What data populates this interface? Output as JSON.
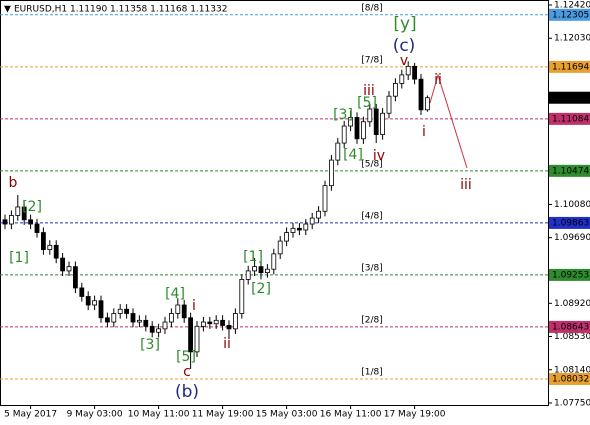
{
  "chart_data": {
    "type": "candlestick",
    "header": "EURUSD,H1  1.11190 1.11358 1.11168 1.11332",
    "categories": [
      null,
      null,
      null,
      null,
      "5 May 2017",
      null,
      null,
      null,
      null,
      null,
      null,
      null,
      null,
      null,
      "9 May 03:00",
      null,
      null,
      null,
      null,
      null,
      null,
      null,
      null,
      null,
      "10 May 11:00",
      null,
      null,
      null,
      null,
      null,
      null,
      null,
      null,
      null,
      "11 May 19:00",
      null,
      null,
      null,
      null,
      null,
      null,
      null,
      null,
      null,
      "15 May 03:00",
      null,
      null,
      null,
      null,
      null,
      null,
      null,
      null,
      null,
      "16 May 11:00",
      null,
      null,
      null,
      null,
      null,
      null,
      null,
      null,
      null,
      "17 May 19:00",
      null,
      null
    ],
    "open": [
      1.099,
      1.0985,
      1.0995,
      1.1005,
      1.099,
      1.0985,
      1.0975,
      1.0955,
      1.096,
      1.0945,
      1.093,
      1.0935,
      1.091,
      1.09,
      1.089,
      1.0895,
      1.0875,
      1.087,
      1.088,
      1.0885,
      1.088,
      1.087,
      1.0872,
      1.0865,
      1.0858,
      1.0862,
      1.087,
      1.088,
      1.089,
      1.0875,
      1.0835,
      1.0865,
      1.087,
      1.0868,
      1.0872,
      1.0866,
      1.0862,
      1.088,
      1.092,
      1.093,
      1.0935,
      1.0928,
      1.0932,
      1.095,
      1.0965,
      1.0975,
      1.098,
      1.0978,
      1.0985,
      1.0992,
      1.1,
      1.103,
      1.106,
      1.108,
      1.11,
      1.111,
      1.1085,
      1.1105,
      1.112,
      1.109,
      1.1115,
      1.1135,
      1.115,
      1.116,
      1.117,
      1.1155,
      1.1119
    ],
    "high": [
      1.0996,
      1.1001,
      1.1019,
      1.1011,
      1.0996,
      1.0991,
      1.0981,
      1.0966,
      1.0966,
      1.0951,
      1.0941,
      1.0941,
      1.0916,
      1.0906,
      1.0901,
      1.0901,
      1.0881,
      1.0886,
      1.0891,
      1.0891,
      1.0886,
      1.0878,
      1.0878,
      1.0871,
      1.0868,
      1.0876,
      1.0886,
      1.0898,
      1.0896,
      1.0881,
      1.0871,
      1.0876,
      1.0876,
      1.0878,
      1.0878,
      1.0872,
      1.0886,
      1.0926,
      1.0936,
      1.0945,
      1.0941,
      1.0938,
      1.0956,
      1.0971,
      1.0981,
      1.0986,
      1.0986,
      1.0991,
      1.0998,
      1.1006,
      1.1036,
      1.1066,
      1.1086,
      1.1106,
      1.1118,
      1.1116,
      1.1111,
      1.1126,
      1.1126,
      1.1121,
      1.1141,
      1.1156,
      1.1166,
      1.1176,
      1.1174,
      1.1161,
      1.11358
    ],
    "low": [
      1.0979,
      1.0979,
      1.0989,
      1.0984,
      1.0979,
      1.0969,
      1.0949,
      1.0949,
      1.0939,
      1.0924,
      1.0924,
      1.0904,
      1.0894,
      1.0884,
      1.0884,
      1.0869,
      1.0864,
      1.0864,
      1.0874,
      1.0874,
      1.0864,
      1.0864,
      1.0859,
      1.0852,
      1.0852,
      1.0856,
      1.0864,
      1.0874,
      1.0869,
      1.0815,
      1.0829,
      1.0859,
      1.0862,
      1.0862,
      1.086,
      1.085,
      1.0856,
      1.0874,
      1.0914,
      1.0924,
      1.092,
      1.0922,
      1.0926,
      1.0944,
      1.0959,
      1.0969,
      1.0972,
      1.0972,
      1.0979,
      1.0986,
      1.0994,
      1.1024,
      1.1054,
      1.1074,
      1.1094,
      1.1079,
      1.1079,
      1.1099,
      1.108,
      1.1084,
      1.1109,
      1.1129,
      1.1144,
      1.1154,
      1.1149,
      1.1113,
      1.11168
    ],
    "close": [
      1.0985,
      1.0995,
      1.1005,
      1.099,
      1.0985,
      1.0975,
      1.0955,
      1.096,
      1.0945,
      1.093,
      1.0935,
      1.091,
      1.09,
      1.089,
      1.0895,
      1.0875,
      1.087,
      1.088,
      1.0885,
      1.088,
      1.087,
      1.0872,
      1.0865,
      1.0858,
      1.0862,
      1.087,
      1.088,
      1.089,
      1.0875,
      1.0835,
      1.0865,
      1.087,
      1.0868,
      1.0872,
      1.0866,
      1.0862,
      1.088,
      1.092,
      1.093,
      1.0935,
      1.0928,
      1.0932,
      1.095,
      1.0965,
      1.0975,
      1.098,
      1.0978,
      1.0985,
      1.0992,
      1.1,
      1.103,
      1.106,
      1.108,
      1.11,
      1.111,
      1.1085,
      1.1105,
      1.112,
      1.109,
      1.1115,
      1.1135,
      1.115,
      1.116,
      1.117,
      1.1155,
      1.1119,
      1.11332
    ],
    "ylim": [
      1.0775,
      1.1242
    ],
    "yticks": [
      {
        "value": 1.1242,
        "label": "1.12420"
      },
      {
        "value": 1.1203,
        "label": "1.12030"
      },
      {
        "value": 1.1008,
        "label": "1.10080"
      },
      {
        "value": 1.0969,
        "label": "1.09690"
      },
      {
        "value": 1.0892,
        "label": "1.08920"
      },
      {
        "value": 1.0853,
        "label": "1.08530"
      },
      {
        "value": 1.0814,
        "label": "1.08140"
      },
      {
        "value": 1.0775,
        "label": "1.07750"
      }
    ],
    "levels": [
      {
        "value": 1.12305,
        "label": "[8/8]",
        "color": "#4a9be0"
      },
      {
        "value": 1.11694,
        "label": "[7/8]",
        "color": "#e8a030"
      },
      {
        "value": 1.11084,
        "color": "#c0306a"
      },
      {
        "value": 1.10474,
        "label": "[5/8]",
        "color": "#2e8b2e"
      },
      {
        "value": 1.09863,
        "label": "[4/8]",
        "color": "#2030c8"
      },
      {
        "value": 1.09253,
        "label": "[3/8]",
        "color": "#2e8b2e"
      },
      {
        "value": 1.08643,
        "label": "[2/8]",
        "color": "#c0306a"
      },
      {
        "value": 1.08032,
        "label": "[1/8]",
        "color": "#e8a030"
      }
    ],
    "current_price": 1.11332,
    "annotations": [
      {
        "text": "b"
      },
      {
        "text": "[2]"
      },
      {
        "text": "[1]"
      },
      {
        "text": "[4]"
      },
      {
        "text": "i"
      },
      {
        "text": "[3]"
      },
      {
        "text": "[5]"
      },
      {
        "text": "c"
      },
      {
        "text": "(b)"
      },
      {
        "text": "ii"
      },
      {
        "text": "[1]"
      },
      {
        "text": "[2]"
      },
      {
        "text": "[3]"
      },
      {
        "text": "[4]"
      },
      {
        "text": "iii"
      },
      {
        "text": "[5]"
      },
      {
        "text": "iv"
      },
      {
        "text": "[y]"
      },
      {
        "text": "(c)"
      },
      {
        "text": "v"
      },
      {
        "text": "ii"
      },
      {
        "text": "i"
      },
      {
        "text": "iii"
      }
    ]
  }
}
